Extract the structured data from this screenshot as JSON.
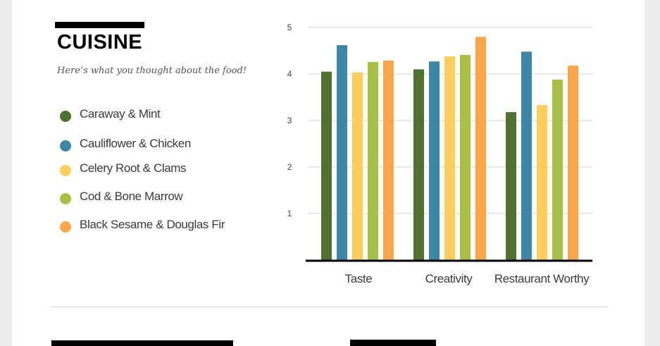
{
  "section": {
    "title": "CUISINE",
    "subtitle": "Here’s what you thought about the food!"
  },
  "chart_data": {
    "type": "bar",
    "categories": [
      "Taste",
      "Creativity",
      "Restaurant Worthy"
    ],
    "series": [
      {
        "name": "Caraway & Mint",
        "color": "#50712f",
        "values": [
          4.05,
          4.1,
          3.18
        ]
      },
      {
        "name": "Cauliflower & Chicken",
        "color": "#3c87a8",
        "values": [
          4.62,
          4.27,
          4.48
        ]
      },
      {
        "name": "Celery Root & Clams",
        "color": "#fdce5a",
        "values": [
          4.03,
          4.38,
          3.33
        ]
      },
      {
        "name": "Cod & Bone Marrow",
        "color": "#a7bf45",
        "values": [
          4.26,
          4.41,
          3.88
        ]
      },
      {
        "name": "Black Sesame & Douglas Fir",
        "color": "#fba84c",
        "values": [
          4.29,
          4.8,
          4.18
        ]
      }
    ],
    "yticks": [
      "1",
      "2",
      "3",
      "4",
      "5"
    ],
    "ylim": [
      0,
      5
    ],
    "grid": true,
    "legend_position": "left"
  }
}
